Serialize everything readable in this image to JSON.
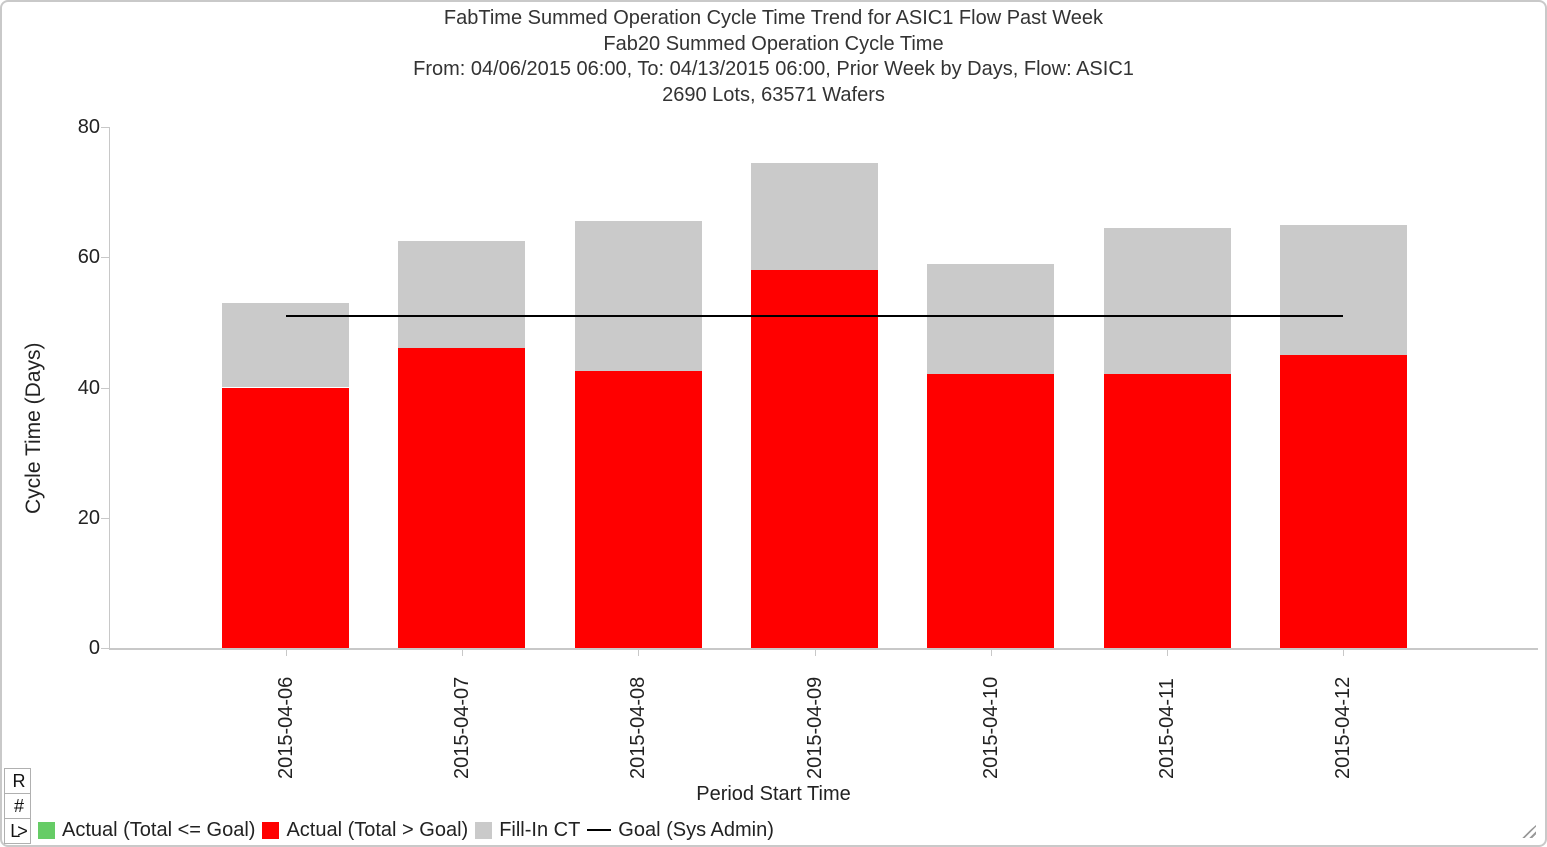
{
  "chart_data": {
    "type": "bar",
    "stacked": true,
    "title": "FabTime Summed Operation Cycle Time Trend for ASIC1 Flow Past Week",
    "subtitle": "Fab20 Summed Operation Cycle Time",
    "subtitle2": "From: 04/06/2015 06:00, To: 04/13/2015 06:00, Prior Week by Days, Flow: ASIC1",
    "subtitle3": "2690 Lots, 63571 Wafers",
    "xlabel": "Period Start Time",
    "ylabel": "Cycle Time (Days)",
    "ylim": [
      0,
      80
    ],
    "yticks": [
      0,
      20,
      40,
      60,
      80
    ],
    "grid": false,
    "legend_position": "bottom",
    "categories": [
      "2015-04-06",
      "2015-04-07",
      "2015-04-08",
      "2015-04-09",
      "2015-04-10",
      "2015-04-11",
      "2015-04-12"
    ],
    "series": [
      {
        "name": "Actual (Total <= Goal)",
        "color": "#66cc66",
        "values": [
          0,
          0,
          0,
          0,
          0,
          0,
          0
        ]
      },
      {
        "name": "Actual (Total > Goal)",
        "color": "#ff0000",
        "values": [
          40,
          46,
          42.5,
          58,
          42,
          42,
          45
        ]
      },
      {
        "name": "Fill-In CT",
        "color": "#cacaca",
        "values": [
          13,
          16.5,
          23,
          16.5,
          17,
          22.5,
          20
        ]
      }
    ],
    "totals": [
      53,
      62.5,
      65.5,
      74.5,
      59,
      64.5,
      65
    ],
    "goal_line": {
      "name": "Goal (Sys Admin)",
      "value": 51,
      "color": "#000000",
      "from_category": "2015-04-06",
      "to_category": "2015-04-12"
    }
  },
  "legend": {
    "items": [
      {
        "label": "Actual (Total <= Goal)",
        "color": "#66cc66",
        "marker": "square"
      },
      {
        "label": "Actual (Total > Goal)",
        "color": "#ff0000",
        "marker": "square"
      },
      {
        "label": "Fill-In CT",
        "color": "#cacaca",
        "marker": "square"
      },
      {
        "label": "Goal (Sys Admin)",
        "color": "#000000",
        "marker": "line"
      }
    ]
  },
  "toolbar": {
    "buttons": [
      {
        "label": "R"
      },
      {
        "label": "#"
      },
      {
        "label": "L>"
      }
    ]
  }
}
